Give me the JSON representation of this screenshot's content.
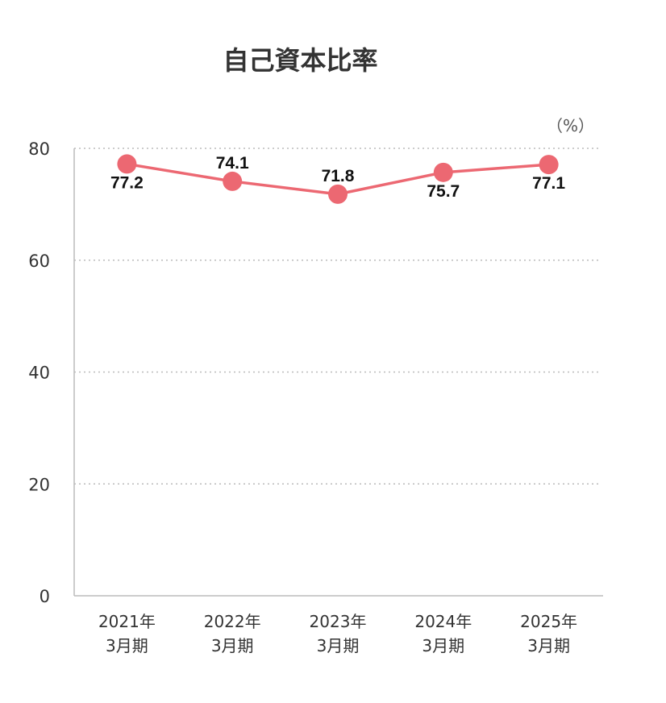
{
  "chart_data": {
    "type": "line",
    "title": "自己資本比率",
    "unit": "（%）",
    "categories": [
      [
        "2021年",
        "3月期"
      ],
      [
        "2022年",
        "3月期"
      ],
      [
        "2023年",
        "3月期"
      ],
      [
        "2024年",
        "3月期"
      ],
      [
        "2025年",
        "3月期"
      ]
    ],
    "values": [
      77.2,
      74.1,
      71.8,
      75.7,
      77.1
    ],
    "label_position": [
      "below",
      "above",
      "above",
      "below",
      "below"
    ],
    "ylim": [
      0,
      80
    ],
    "yticks": [
      0,
      20,
      40,
      60,
      80
    ],
    "grid": true,
    "series_color": "#ec6872",
    "grid_color": "#bbbbbb",
    "axis_color": "#bbbbbb"
  }
}
